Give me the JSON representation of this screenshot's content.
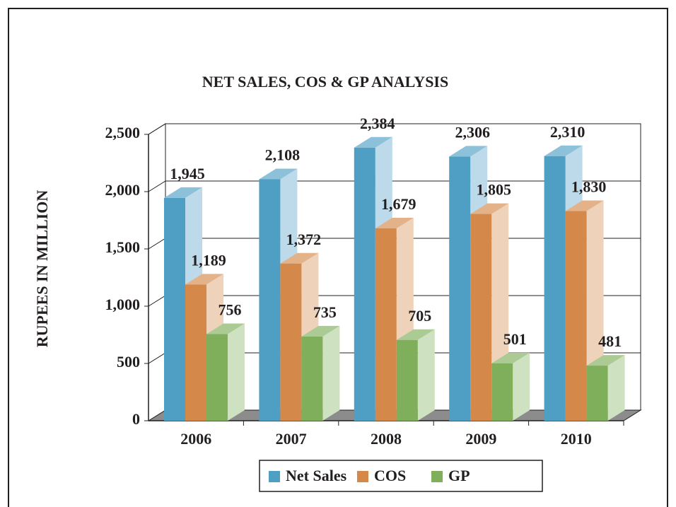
{
  "chart_data": {
    "type": "bar3d",
    "title": "NET SALES, COS & GP ANALYSIS",
    "y_label": "RUPEES IN MILLION",
    "categories": [
      "2006",
      "2007",
      "2008",
      "2009",
      "2010"
    ],
    "series": [
      {
        "name": "Net Sales",
        "color": "#4f9ec4",
        "values": [
          1945,
          2108,
          2384,
          2306,
          2310
        ],
        "value_labels": [
          "1,945",
          "2,108",
          "2,384",
          "2,306",
          "2,310"
        ]
      },
      {
        "name": "COS",
        "color": "#d4884a",
        "values": [
          1189,
          1372,
          1679,
          1805,
          1830
        ],
        "value_labels": [
          "1,189",
          "1,372",
          "1,679",
          "1,805",
          "1,830"
        ]
      },
      {
        "name": "GP",
        "color": "#7faf5b",
        "values": [
          756,
          735,
          705,
          501,
          481
        ]
      }
    ],
    "ylim": [
      0,
      2500
    ],
    "yticks": [
      0,
      500,
      {
        "value": 1000,
        "label": "1,000"
      },
      {
        "value": 1500,
        "label": "1,500"
      },
      {
        "value": 2000,
        "label": "2,000"
      },
      {
        "value": 2500,
        "label": "2,500"
      }
    ],
    "grid": true,
    "legend": "bottom"
  }
}
